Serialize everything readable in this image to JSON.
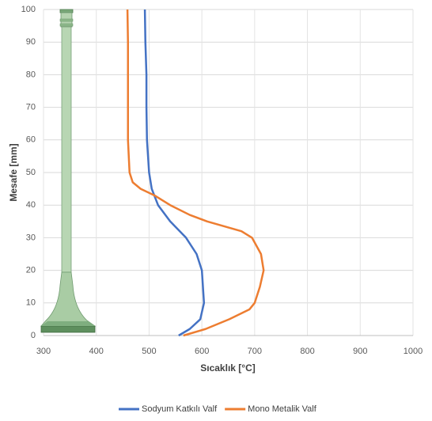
{
  "chart_data": {
    "type": "line",
    "x_label": "Sıcaklık [°C]",
    "y_label": "Mesafe [mm]",
    "xlim": [
      300,
      1000
    ],
    "ylim": [
      0,
      100
    ],
    "xticks": [
      300,
      400,
      500,
      600,
      700,
      800,
      900,
      1000
    ],
    "yticks": [
      0,
      10,
      20,
      30,
      40,
      50,
      60,
      70,
      80,
      90,
      100
    ],
    "grid": true,
    "legend": "bottom",
    "series": [
      {
        "name": "Sodyum Katkılı Valf",
        "color": "#4472c4",
        "x": [
          492,
          493,
          495,
          495,
          496,
          500,
          505,
          517,
          540,
          570,
          590,
          600,
          604,
          597,
          577,
          556
        ],
        "values": [
          100,
          90,
          80,
          70,
          60,
          50,
          45,
          40,
          35,
          30,
          25,
          20,
          10,
          5,
          2,
          0
        ]
      },
      {
        "name": "Mono Metalik Valf",
        "color": "#ed7d31",
        "x": [
          459,
          460,
          460,
          460,
          463,
          469,
          484,
          510,
          540,
          577,
          610,
          675,
          695,
          712,
          717,
          710,
          700,
          690,
          652,
          607,
          565
        ],
        "values": [
          100,
          90,
          80,
          60,
          50,
          47,
          45,
          43,
          40,
          37,
          35,
          32,
          30,
          25,
          20,
          15,
          10,
          8,
          5,
          2,
          0
        ]
      }
    ]
  }
}
